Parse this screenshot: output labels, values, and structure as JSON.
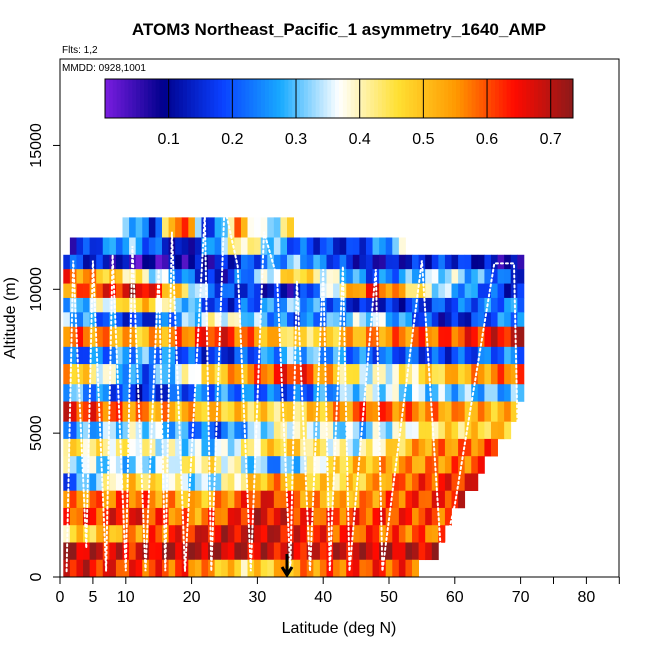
{
  "chart_data": {
    "type": "heatmap",
    "title": "ATOM3 Northeast_Pacific_1 asymmetry_1640_AMP",
    "annotations": {
      "flights": "Flts: 1,2",
      "dates": "MMDD: 0928,1001"
    },
    "xlabel": "Latitude (deg N)",
    "ylabel": "Altitude (m)",
    "xlim": [
      0,
      85
    ],
    "ylim": [
      0,
      18000
    ],
    "xticks": [
      0,
      5,
      10,
      20,
      30,
      40,
      50,
      60,
      70,
      80
    ],
    "xtick_minor": [
      75,
      85
    ],
    "yticks": [
      0,
      5000,
      10000,
      15000
    ],
    "colorbar": {
      "range": [
        0.0,
        0.735
      ],
      "ticks": [
        0.1,
        0.2,
        0.3,
        0.4,
        0.5,
        0.6,
        0.7
      ],
      "tick_labels": [
        "0.1",
        "0.2",
        "0.3",
        "0.4",
        "0.5",
        "0.6",
        "0.7"
      ],
      "colormap": [
        "#7a1de0",
        "#00008c",
        "#0a40ff",
        "#18aaff",
        "#ffffff",
        "#ffe033",
        "#ff9900",
        "#ff0a00",
        "#8c1a1a"
      ]
    },
    "altitude_bands": [
      {
        "z": [
          11800,
          12500
        ],
        "x": [
          9.5,
          35.0
        ],
        "pattern": [
          0.35,
          0.15,
          0.7,
          0.1,
          0.55,
          0.3,
          0.45
        ]
      },
      {
        "z": [
          11200,
          11800
        ],
        "x": [
          1.5,
          52.5
        ],
        "pattern": [
          0.12,
          0.3,
          0.08,
          0.45,
          0.2,
          0.15,
          0.35
        ]
      },
      {
        "z": [
          10700,
          11200
        ],
        "x": [
          0.5,
          70.0
        ],
        "pattern": [
          0.2,
          0.05,
          0.12,
          0.3,
          0.1,
          0.18,
          0.06
        ]
      },
      {
        "z": [
          10200,
          10700
        ],
        "x": [
          0.5,
          70.0
        ],
        "pattern": [
          0.6,
          0.4,
          0.1,
          0.5,
          0.2,
          0.35,
          0.15
        ]
      },
      {
        "z": [
          9700,
          10200
        ],
        "x": [
          0.5,
          70.0
        ],
        "pattern": [
          0.55,
          0.7,
          0.2,
          0.1,
          0.65,
          0.3,
          0.12
        ]
      },
      {
        "z": [
          9200,
          9700
        ],
        "x": [
          0.5,
          70.0
        ],
        "pattern": [
          0.25,
          0.5,
          0.15,
          0.3,
          0.12,
          0.2,
          0.25
        ]
      },
      {
        "z": [
          8700,
          9200
        ],
        "x": [
          0.5,
          70.0
        ],
        "pattern": [
          0.3,
          0.15,
          0.4,
          0.2,
          0.35,
          0.12,
          0.28
        ]
      },
      {
        "z": [
          8000,
          8700
        ],
        "x": [
          0.5,
          70.0
        ],
        "pattern": [
          0.6,
          0.5,
          0.65,
          0.45,
          0.55,
          0.6,
          0.68
        ]
      },
      {
        "z": [
          7400,
          8000
        ],
        "x": [
          0.5,
          70.0
        ],
        "pattern": [
          0.2,
          0.28,
          0.15,
          0.3,
          0.22,
          0.18,
          0.25
        ]
      },
      {
        "z": [
          6700,
          7400
        ],
        "x": [
          0.5,
          70.0
        ],
        "pattern": [
          0.55,
          0.2,
          0.5,
          0.65,
          0.35,
          0.5,
          0.6
        ]
      },
      {
        "z": [
          6100,
          6700
        ],
        "x": [
          0.5,
          70.0
        ],
        "pattern": [
          0.3,
          0.15,
          0.25,
          0.2,
          0.35,
          0.3,
          0.28
        ]
      },
      {
        "z": [
          5400,
          6100
        ],
        "x": [
          0.5,
          69.0
        ],
        "pattern": [
          0.65,
          0.55,
          0.5,
          0.45,
          0.6,
          0.55,
          0.5
        ]
      },
      {
        "z": [
          4800,
          5400
        ],
        "x": [
          0.5,
          68.0
        ],
        "pattern": [
          0.25,
          0.35,
          0.2,
          0.4,
          0.3,
          0.45,
          0.5
        ]
      },
      {
        "z": [
          4200,
          4800
        ],
        "x": [
          0.5,
          66.0
        ],
        "pattern": [
          0.45,
          0.4,
          0.3,
          0.5,
          0.35,
          0.55,
          0.6
        ]
      },
      {
        "z": [
          3600,
          4200
        ],
        "x": [
          0.5,
          64.5
        ],
        "pattern": [
          0.35,
          0.3,
          0.45,
          0.25,
          0.5,
          0.55,
          0.6
        ]
      },
      {
        "z": [
          3000,
          3600
        ],
        "x": [
          0.5,
          63.0
        ],
        "pattern": [
          0.2,
          0.5,
          0.3,
          0.55,
          0.45,
          0.6,
          0.65
        ]
      },
      {
        "z": [
          2400,
          3000
        ],
        "x": [
          0.5,
          61.0
        ],
        "pattern": [
          0.55,
          0.6,
          0.5,
          0.65,
          0.5,
          0.6,
          0.65
        ]
      },
      {
        "z": [
          1800,
          2400
        ],
        "x": [
          0.5,
          59.5
        ],
        "pattern": [
          0.6,
          0.65,
          0.55,
          0.68,
          0.6,
          0.62,
          0.6
        ]
      },
      {
        "z": [
          1200,
          1800
        ],
        "x": [
          0.5,
          58.0
        ],
        "pattern": [
          0.45,
          0.55,
          0.65,
          0.7,
          0.62,
          0.6,
          0.58
        ]
      },
      {
        "z": [
          600,
          1200
        ],
        "x": [
          0.5,
          57.0
        ],
        "pattern": [
          0.7,
          0.65,
          0.72,
          0.68,
          0.66,
          0.7,
          0.68
        ]
      },
      {
        "z": [
          0,
          600
        ],
        "x": [
          0.5,
          54.5
        ],
        "pattern": [
          0.68,
          0.62,
          0.6,
          0.45,
          0.55,
          0.62,
          0.6
        ]
      }
    ],
    "flight_track": [
      [
        1,
        200
      ],
      [
        2,
        11000
      ],
      [
        4,
        1000
      ],
      [
        5,
        11000
      ],
      [
        7,
        200
      ],
      [
        8,
        11200
      ],
      [
        10,
        200
      ],
      [
        11,
        11500
      ],
      [
        13,
        200
      ],
      [
        15,
        10700
      ],
      [
        16,
        200
      ],
      [
        17,
        12000
      ],
      [
        19,
        200
      ],
      [
        22,
        12600
      ],
      [
        23,
        200
      ],
      [
        25,
        12900
      ],
      [
        27,
        10800
      ],
      [
        29,
        200
      ],
      [
        31,
        12000
      ],
      [
        33,
        10400
      ],
      [
        35,
        200
      ],
      [
        36,
        10300
      ],
      [
        38,
        200
      ],
      [
        40,
        10700
      ],
      [
        41,
        200
      ],
      [
        43,
        10800
      ],
      [
        44,
        200
      ],
      [
        48,
        10700
      ],
      [
        49,
        200
      ],
      [
        55,
        11000
      ],
      [
        58,
        500
      ],
      [
        60,
        2500
      ],
      [
        66,
        10900
      ],
      [
        69,
        10900
      ],
      [
        70,
        300
      ]
    ],
    "marker": {
      "x": 34.5,
      "label": "arrow"
    }
  }
}
